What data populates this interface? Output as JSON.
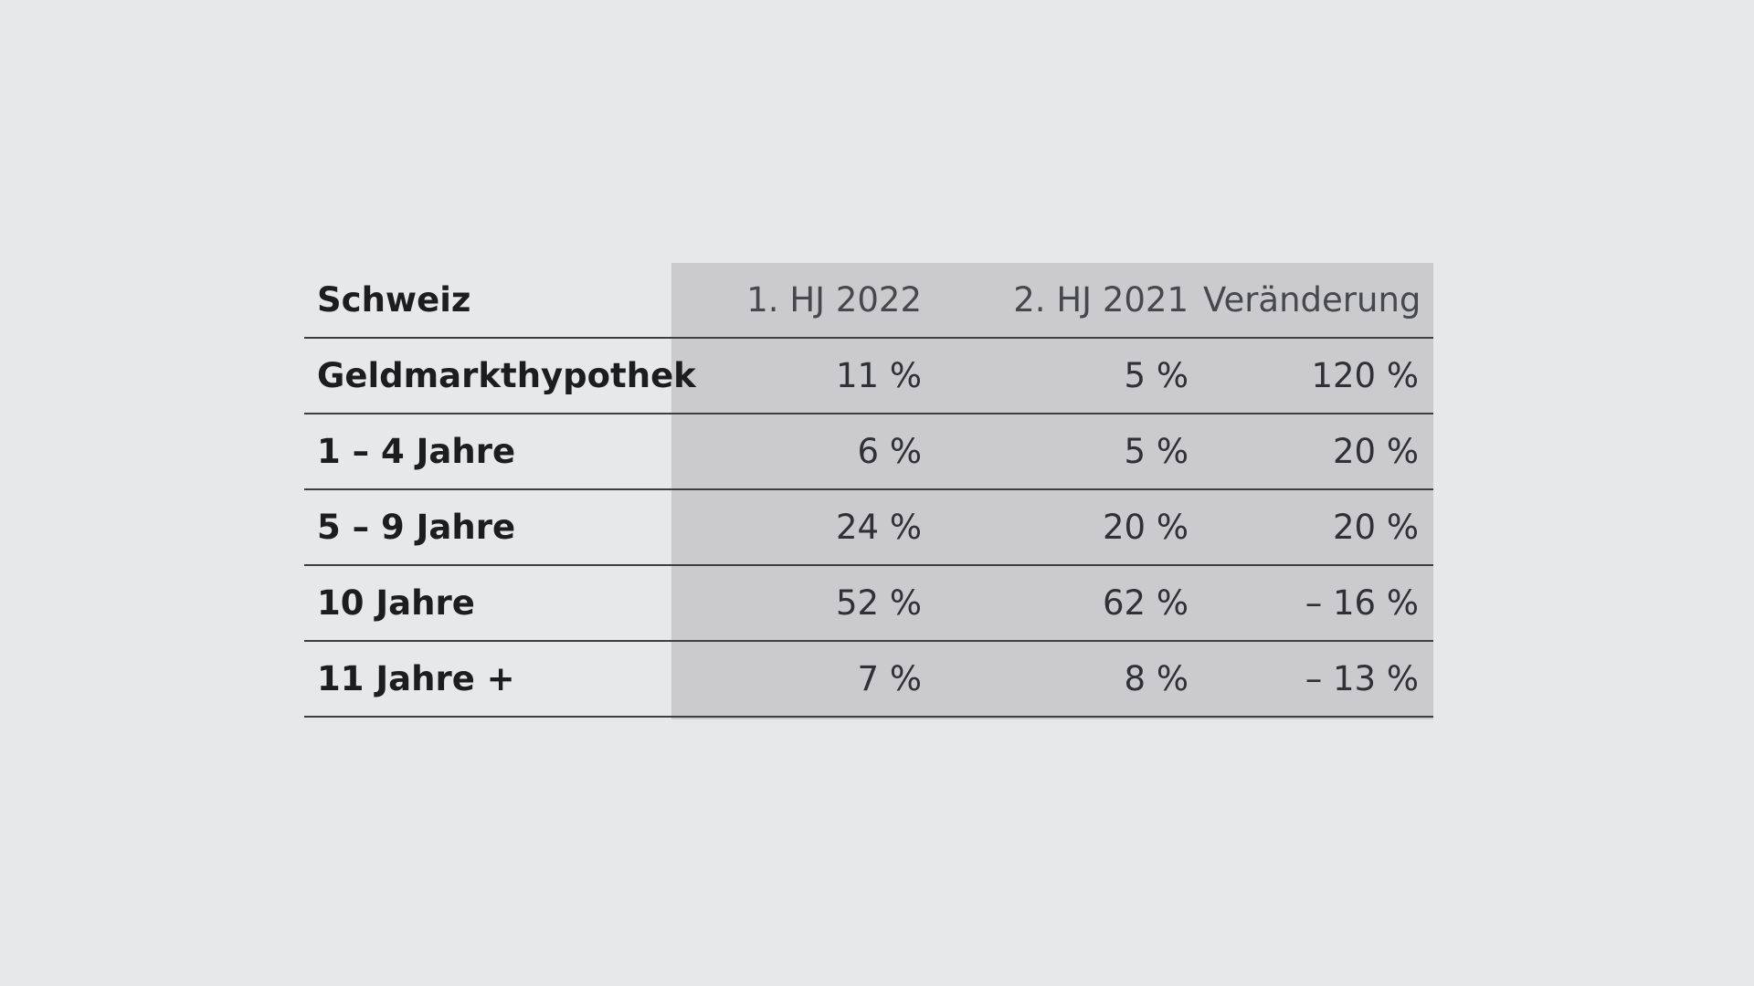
{
  "chart_data": {
    "type": "table",
    "title": "",
    "columns": [
      "Schweiz",
      "1. HJ 2022",
      "2. HJ 2021",
      "Veränderung"
    ],
    "rows": [
      {
        "label": "Geldmarkthypothek",
        "values": [
          "11 %",
          "5 %",
          "120 %"
        ]
      },
      {
        "label": "1 – 4 Jahre",
        "values": [
          "6 %",
          "5 %",
          "20 %"
        ]
      },
      {
        "label": "5 – 9 Jahre",
        "values": [
          "24 %",
          "20 %",
          "20 %"
        ]
      },
      {
        "label": "10 Jahre",
        "values": [
          "52 %",
          "62 %",
          "– 16 %"
        ]
      },
      {
        "label": "11 Jahre +",
        "values": [
          "7 %",
          "8 %",
          "– 13 %"
        ]
      }
    ]
  },
  "colors": {
    "background": "#e7e8ea",
    "shaded_panel": "#cbcbcd",
    "rule": "#3e3e40",
    "text": "#1d1d1f"
  }
}
